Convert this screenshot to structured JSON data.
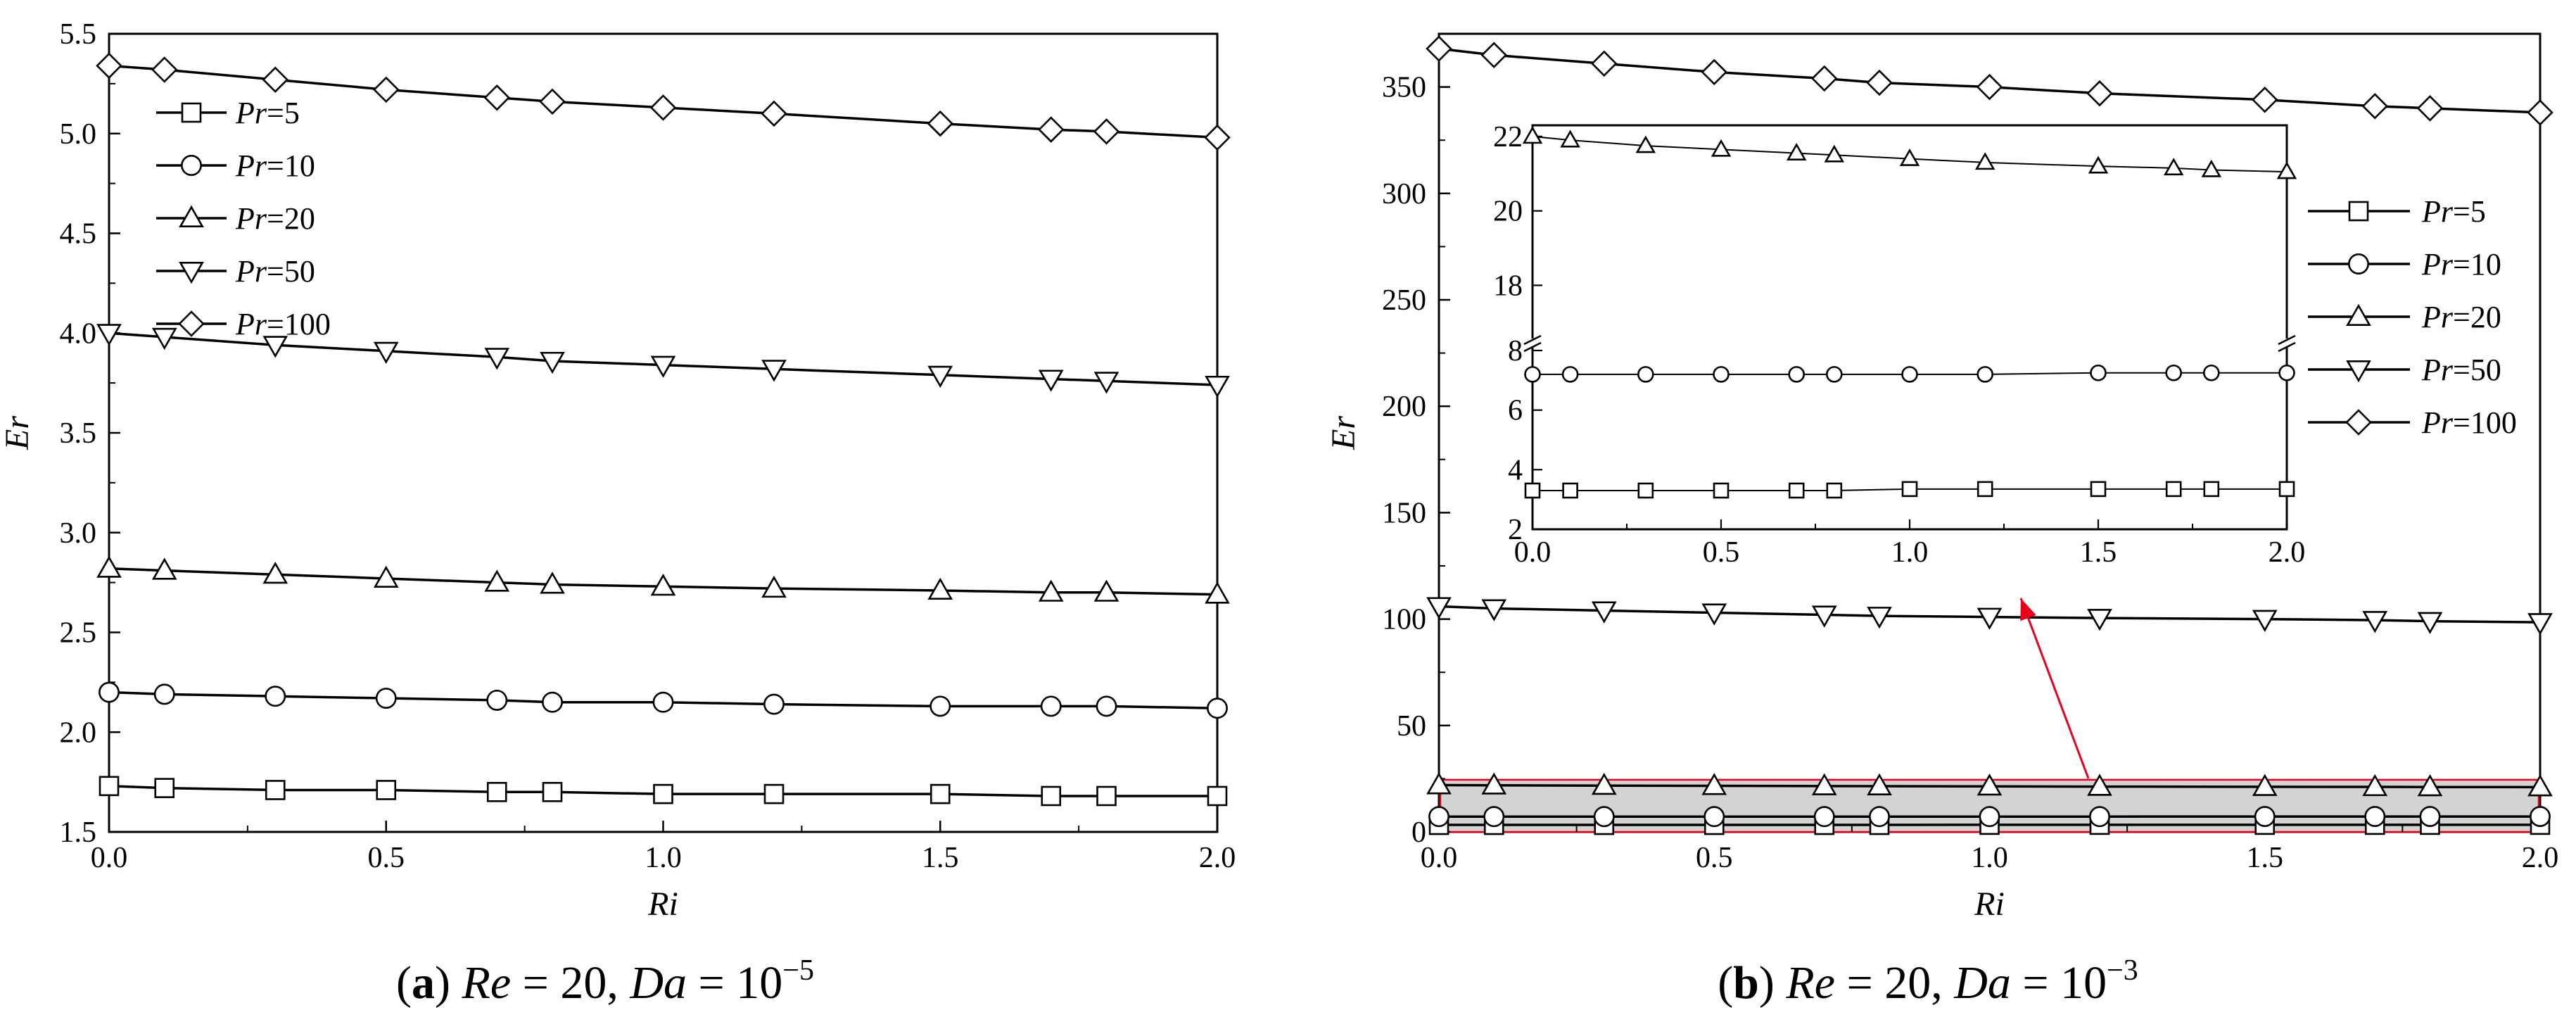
{
  "figure": {
    "captions": [
      {
        "open": "(",
        "letter": "a",
        "close": ")",
        "v1": "Re",
        "eq1": " = 20, ",
        "v2": "Da",
        "eq2": " = 10",
        "exp": "−5"
      },
      {
        "open": "(",
        "letter": "b",
        "close": ")",
        "v1": "Re",
        "eq1": " = 20, ",
        "v2": "Da",
        "eq2": " = 10",
        "exp": "−3"
      }
    ],
    "legend": [
      {
        "var": "Pr",
        "val": "=5",
        "marker": "square"
      },
      {
        "var": "Pr",
        "val": "=10",
        "marker": "circle"
      },
      {
        "var": "Pr",
        "val": "=20",
        "marker": "triangle-up"
      },
      {
        "var": "Pr",
        "val": "=50",
        "marker": "triangle-down"
      },
      {
        "var": "Pr",
        "val": "=100",
        "marker": "diamond"
      }
    ],
    "inset_annotation_color": "#e8001c",
    "highlight_fill": "#d3d3d3"
  },
  "chart_data": [
    {
      "type": "line",
      "panel": "a",
      "xlabel": "Ri",
      "ylabel": "Er",
      "xlim": [
        0,
        2
      ],
      "ylim": [
        1.5,
        5.5
      ],
      "x_ticks": [
        "0.0",
        "0.5",
        "1.0",
        "1.5",
        "2.0"
      ],
      "y_ticks": [
        "1.5",
        "2.0",
        "2.5",
        "3.0",
        "3.5",
        "4.0",
        "4.5",
        "5.0",
        "5.5"
      ],
      "x": [
        0,
        0.1,
        0.3,
        0.5,
        0.7,
        0.8,
        1.0,
        1.2,
        1.5,
        1.7,
        1.8,
        2.0
      ],
      "series": [
        {
          "name": "Pr=5",
          "marker": "square",
          "values": [
            1.73,
            1.72,
            1.71,
            1.71,
            1.7,
            1.7,
            1.69,
            1.69,
            1.69,
            1.68,
            1.68,
            1.68
          ]
        },
        {
          "name": "Pr=10",
          "marker": "circle",
          "values": [
            2.2,
            2.19,
            2.18,
            2.17,
            2.16,
            2.15,
            2.15,
            2.14,
            2.13,
            2.13,
            2.13,
            2.12
          ]
        },
        {
          "name": "Pr=20",
          "marker": "triangle-up",
          "values": [
            2.82,
            2.81,
            2.79,
            2.77,
            2.75,
            2.74,
            2.73,
            2.72,
            2.71,
            2.7,
            2.7,
            2.69
          ]
        },
        {
          "name": "Pr=50",
          "marker": "triangle-down",
          "values": [
            4.0,
            3.98,
            3.94,
            3.91,
            3.88,
            3.86,
            3.84,
            3.82,
            3.79,
            3.77,
            3.76,
            3.74
          ]
        },
        {
          "name": "Pr=100",
          "marker": "diamond",
          "values": [
            5.34,
            5.32,
            5.27,
            5.22,
            5.18,
            5.16,
            5.13,
            5.1,
            5.05,
            5.02,
            5.01,
            4.98
          ]
        }
      ],
      "legend_position": "top-left",
      "grid": false
    },
    {
      "type": "line",
      "panel": "b",
      "xlabel": "Ri",
      "ylabel": "Er",
      "xlim": [
        0,
        2
      ],
      "ylim": [
        0,
        375
      ],
      "x_ticks": [
        "0.0",
        "0.5",
        "1.0",
        "1.5",
        "2.0"
      ],
      "y_ticks": [
        "0",
        "50",
        "100",
        "150",
        "200",
        "250",
        "300",
        "350"
      ],
      "x": [
        0,
        0.1,
        0.3,
        0.5,
        0.7,
        0.8,
        1.0,
        1.2,
        1.5,
        1.7,
        1.8,
        2.0
      ],
      "series": [
        {
          "name": "Pr=5",
          "marker": "square",
          "values": [
            3.3,
            3.3,
            3.3,
            3.3,
            3.3,
            3.3,
            3.35,
            3.35,
            3.35,
            3.35,
            3.35,
            3.35
          ]
        },
        {
          "name": "Pr=10",
          "marker": "circle",
          "values": [
            7.2,
            7.2,
            7.2,
            7.2,
            7.2,
            7.2,
            7.2,
            7.2,
            7.25,
            7.25,
            7.25,
            7.25
          ]
        },
        {
          "name": "Pr=20",
          "marker": "triangle-up",
          "values": [
            22.0,
            21.9,
            21.75,
            21.65,
            21.55,
            21.5,
            21.4,
            21.3,
            21.2,
            21.15,
            21.1,
            21.05
          ]
        },
        {
          "name": "Pr=50",
          "marker": "triangle-down",
          "values": [
            106,
            105,
            104,
            103,
            102,
            101.5,
            101,
            100.5,
            100,
            99.5,
            99,
            98.5
          ]
        },
        {
          "name": "Pr=100",
          "marker": "diamond",
          "values": [
            368,
            365,
            361,
            357,
            354,
            352,
            350,
            347,
            344,
            341,
            340,
            338
          ]
        }
      ],
      "legend_position": "right",
      "grid": false,
      "inset": {
        "xlim": [
          0,
          2
        ],
        "x_ticks": [
          "0.0",
          "0.5",
          "1.0",
          "1.5",
          "2.0"
        ],
        "y_ticks_lower": [
          "2",
          "4",
          "6",
          "8"
        ],
        "y_ticks_upper": [
          "18",
          "20",
          "22"
        ],
        "axis_break": true,
        "series": [
          {
            "name": "Pr=5",
            "values": [
              3.3,
              3.3,
              3.3,
              3.3,
              3.3,
              3.3,
              3.35,
              3.35,
              3.35,
              3.35,
              3.35,
              3.35
            ]
          },
          {
            "name": "Pr=10",
            "values": [
              7.2,
              7.2,
              7.2,
              7.2,
              7.2,
              7.2,
              7.2,
              7.2,
              7.25,
              7.25,
              7.25,
              7.25
            ]
          },
          {
            "name": "Pr=20",
            "values": [
              22.0,
              21.9,
              21.75,
              21.65,
              21.55,
              21.5,
              21.4,
              21.3,
              21.2,
              21.15,
              21.1,
              21.05
            ]
          }
        ]
      }
    }
  ]
}
